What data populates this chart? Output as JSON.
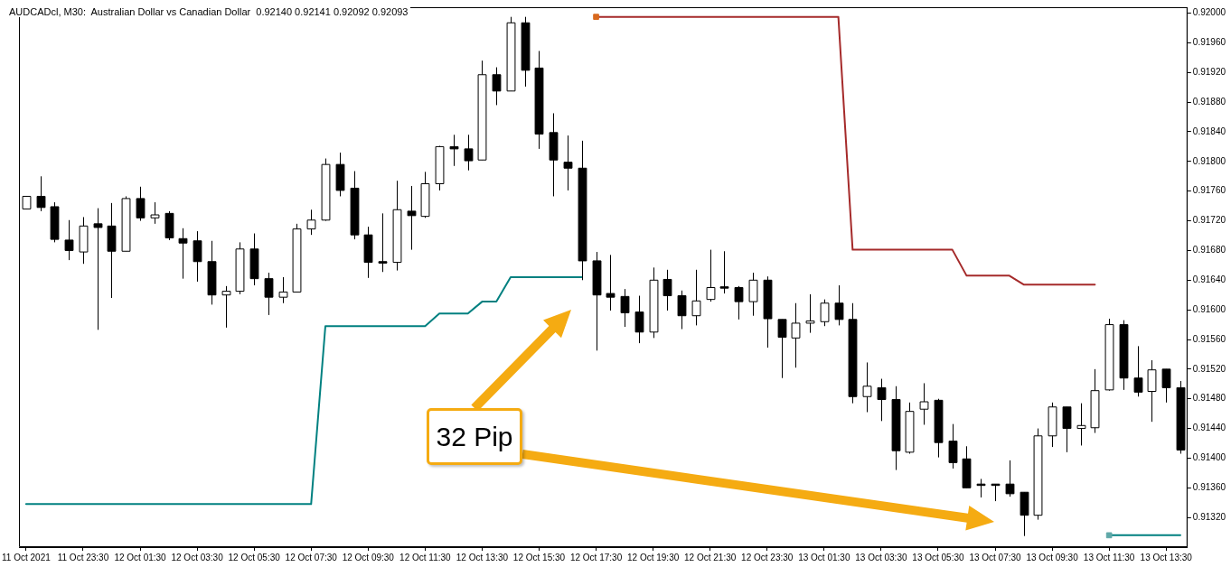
{
  "chart_data": {
    "type": "candlestick",
    "title": "AUDCADcl, M30:  Australian Dollar vs Canadian Dollar  0.92140 0.92141 0.92092 0.92093",
    "categories": [
      "11 Oct 2021",
      null,
      null,
      null,
      "11 Oct 23:30",
      null,
      null,
      null,
      "12 Oct 01:30",
      null,
      null,
      null,
      "12 Oct 03:30",
      null,
      null,
      null,
      "12 Oct 05:30",
      null,
      null,
      null,
      "12 Oct 07:30",
      null,
      null,
      null,
      "12 Oct 09:30",
      null,
      null,
      null,
      "12 Oct 11:30",
      null,
      null,
      null,
      "12 Oct 13:30",
      null,
      null,
      null,
      "12 Oct 15:30",
      null,
      null,
      null,
      "12 Oct 17:30",
      null,
      null,
      null,
      "12 Oct 19:30",
      null,
      null,
      null,
      "12 Oct 21:30",
      null,
      null,
      null,
      "12 Oct 23:30",
      null,
      null,
      null,
      "13 Oct 01:30",
      null,
      null,
      null,
      "13 Oct 03:30",
      null,
      null,
      null,
      "13 Oct 05:30",
      null,
      null,
      null,
      "13 Oct 07:30",
      null,
      null,
      null,
      "13 Oct 09:30",
      null,
      null,
      null,
      "13 Oct 11:30",
      null,
      null,
      null,
      "13 Oct 13:30",
      null
    ],
    "series": [
      {
        "colors": [
          "#ffffff",
          "#000000",
          "#000000",
          "#000000",
          "#ffffff",
          "#000000",
          "#000000",
          "#ffffff",
          "#000000",
          "#ffffff",
          "#000000",
          "#000000",
          "#000000",
          "#000000",
          "#ffffff",
          "#ffffff",
          "#000000",
          "#000000",
          "#ffffff",
          "#ffffff",
          "#ffffff",
          "#ffffff",
          "#000000",
          "#000000",
          "#000000",
          "#000000",
          "#ffffff",
          "#000000",
          "#ffffff",
          "#ffffff",
          "#000000",
          "#000000",
          "#ffffff",
          "#000000",
          "#ffffff",
          "#000000",
          "#000000",
          "#000000",
          "#000000",
          "#000000",
          "#000000",
          "#000000",
          "#000000",
          "#000000",
          "#ffffff",
          "#000000",
          "#000000",
          "#ffffff",
          "#ffffff",
          "#000000",
          "#000000",
          "#ffffff",
          "#000000",
          "#000000",
          "#ffffff",
          "#ffffff",
          "#ffffff",
          "#000000",
          "#000000",
          "#ffffff",
          "#000000",
          "#000000",
          "#ffffff",
          "#ffffff",
          "#000000",
          "#000000",
          "#000000",
          "#000000",
          "#000000",
          "#000000",
          "#000000",
          "#ffffff",
          "#ffffff",
          "#000000",
          "#ffffff",
          "#ffffff",
          "#ffffff",
          "#000000",
          "#000000",
          "#ffffff",
          "#000000",
          "#000000"
        ],
        "ohlc": [
          [
            0.91736,
            0.91753,
            0.91736,
            0.91753
          ],
          [
            0.91753,
            0.9178,
            0.91733,
            0.91738
          ],
          [
            0.91739,
            0.91745,
            0.91691,
            0.91695
          ],
          [
            0.91694,
            0.91721,
            0.91667,
            0.9168
          ],
          [
            0.91678,
            0.91725,
            0.91662,
            0.91713
          ],
          [
            0.91716,
            0.91737,
            0.91573,
            0.91711
          ],
          [
            0.91713,
            0.91744,
            0.91616,
            0.91679
          ],
          [
            0.91679,
            0.91753,
            0.91679,
            0.9175
          ],
          [
            0.9175,
            0.91766,
            0.9172,
            0.91724
          ],
          [
            0.91724,
            0.91745,
            0.91716,
            0.91728
          ],
          [
            0.9173,
            0.91733,
            0.91694,
            0.91697
          ],
          [
            0.91696,
            0.9171,
            0.91642,
            0.9169
          ],
          [
            0.91693,
            0.91706,
            0.91638,
            0.91665
          ],
          [
            0.91665,
            0.91693,
            0.91607,
            0.9162
          ],
          [
            0.9162,
            0.91632,
            0.91576,
            0.91625
          ],
          [
            0.91625,
            0.91691,
            0.91621,
            0.91682
          ],
          [
            0.91682,
            0.91703,
            0.91633,
            0.91642
          ],
          [
            0.91642,
            0.9165,
            0.91593,
            0.91617
          ],
          [
            0.91617,
            0.91644,
            0.91609,
            0.91624
          ],
          [
            0.91624,
            0.91716,
            0.91624,
            0.91709
          ],
          [
            0.91709,
            0.91735,
            0.91701,
            0.91721
          ],
          [
            0.91721,
            0.91804,
            0.9172,
            0.91796
          ],
          [
            0.91796,
            0.91812,
            0.91753,
            0.91761
          ],
          [
            0.91764,
            0.91787,
            0.91695,
            0.91701
          ],
          [
            0.91701,
            0.91712,
            0.91643,
            0.91664
          ],
          [
            0.91665,
            0.9173,
            0.91651,
            0.91663
          ],
          [
            0.91664,
            0.91774,
            0.91653,
            0.91735
          ],
          [
            0.91733,
            0.91767,
            0.91681,
            0.91727
          ],
          [
            0.91726,
            0.91786,
            0.91724,
            0.9177
          ],
          [
            0.9177,
            0.91821,
            0.91761,
            0.9182
          ],
          [
            0.9182,
            0.91836,
            0.91794,
            0.91817
          ],
          [
            0.91817,
            0.91836,
            0.91788,
            0.91801
          ],
          [
            0.91802,
            0.91936,
            0.91802,
            0.91917
          ],
          [
            0.91917,
            0.91927,
            0.91876,
            0.91895
          ],
          [
            0.91895,
            0.91995,
            0.91895,
            0.91987
          ],
          [
            0.91987,
            0.91995,
            0.91901,
            0.91923
          ],
          [
            0.91926,
            0.91949,
            0.91817,
            0.91837
          ],
          [
            0.91839,
            0.91865,
            0.91753,
            0.91802
          ],
          [
            0.91799,
            0.91835,
            0.91761,
            0.91791
          ],
          [
            0.91791,
            0.91828,
            0.9164,
            0.91666
          ],
          [
            0.91666,
            0.91678,
            0.91545,
            0.9162
          ],
          [
            0.91622,
            0.91674,
            0.91599,
            0.91617
          ],
          [
            0.91618,
            0.91628,
            0.91577,
            0.91596
          ],
          [
            0.91597,
            0.91619,
            0.91555,
            0.9157
          ],
          [
            0.9157,
            0.91657,
            0.91562,
            0.9164
          ],
          [
            0.91641,
            0.91654,
            0.91599,
            0.91619
          ],
          [
            0.91619,
            0.91626,
            0.91574,
            0.91592
          ],
          [
            0.91592,
            0.91654,
            0.91579,
            0.91612
          ],
          [
            0.91614,
            0.91681,
            0.91611,
            0.9163
          ],
          [
            0.91631,
            0.91679,
            0.91622,
            0.9163
          ],
          [
            0.9163,
            0.91632,
            0.91587,
            0.91611
          ],
          [
            0.91611,
            0.9165,
            0.91592,
            0.9164
          ],
          [
            0.9164,
            0.91645,
            0.91549,
            0.91588
          ],
          [
            0.91587,
            0.91587,
            0.91508,
            0.91563
          ],
          [
            0.91562,
            0.91609,
            0.91522,
            0.91582
          ],
          [
            0.91582,
            0.91621,
            0.91569,
            0.91585
          ],
          [
            0.91584,
            0.91614,
            0.91578,
            0.91609
          ],
          [
            0.91609,
            0.91633,
            0.91579,
            0.91587
          ],
          [
            0.91587,
            0.91609,
            0.91474,
            0.91483
          ],
          [
            0.91483,
            0.91529,
            0.91462,
            0.91497
          ],
          [
            0.91495,
            0.91507,
            0.9145,
            0.91479
          ],
          [
            0.91479,
            0.91497,
            0.91384,
            0.9141
          ],
          [
            0.91408,
            0.91475,
            0.91406,
            0.91463
          ],
          [
            0.91466,
            0.91501,
            0.91445,
            0.91476
          ],
          [
            0.91478,
            0.9148,
            0.91401,
            0.91421
          ],
          [
            0.91423,
            0.91446,
            0.91386,
            0.91394
          ],
          [
            0.91399,
            0.91416,
            0.9136,
            0.9136
          ],
          [
            0.91365,
            0.91372,
            0.91347,
            0.91364
          ],
          [
            0.91365,
            0.91365,
            0.91342,
            0.91364
          ],
          [
            0.91365,
            0.91397,
            0.91348,
            0.91352
          ],
          [
            0.91354,
            0.91354,
            0.91295,
            0.91323
          ],
          [
            0.91323,
            0.9144,
            0.91317,
            0.9143
          ],
          [
            0.9143,
            0.91475,
            0.91415,
            0.91469
          ],
          [
            0.91469,
            0.91469,
            0.91408,
            0.9144
          ],
          [
            0.9144,
            0.91474,
            0.91417,
            0.91444
          ],
          [
            0.91441,
            0.9152,
            0.91434,
            0.91491
          ],
          [
            0.91492,
            0.91588,
            0.91491,
            0.9158
          ],
          [
            0.9158,
            0.91586,
            0.91492,
            0.91508
          ],
          [
            0.91508,
            0.91551,
            0.91483,
            0.91489
          ],
          [
            0.9149,
            0.91532,
            0.91449,
            0.91519
          ],
          [
            0.9152,
            0.9152,
            0.91475,
            0.91495
          ],
          [
            0.91495,
            0.91504,
            0.91406,
            0.91411
          ]
        ]
      },
      {
        "type": "scatter",
        "color": "#d8691e",
        "marker": "square",
        "values": [
          null,
          null,
          null,
          null,
          null,
          null,
          null,
          null,
          null,
          null,
          null,
          null,
          null,
          null,
          null,
          null,
          null,
          null,
          null,
          null,
          null,
          null,
          null,
          null,
          null,
          null,
          null,
          null,
          null,
          null,
          null,
          null,
          null,
          null,
          null,
          null,
          null,
          null,
          null,
          null,
          0.91995,
          null,
          null,
          null,
          null,
          null,
          null,
          null,
          null,
          null,
          null,
          null,
          null,
          null,
          null,
          null,
          null,
          null,
          null,
          null,
          null,
          null,
          null,
          null,
          null,
          null,
          null,
          null,
          null,
          null,
          null,
          null,
          null,
          null,
          null,
          null,
          null,
          null,
          null,
          null,
          null,
          null
        ]
      },
      {
        "type": "scatter",
        "color": "#5fa8a8",
        "marker": "square",
        "values": [
          null,
          null,
          null,
          null,
          null,
          null,
          null,
          null,
          null,
          null,
          null,
          null,
          null,
          null,
          null,
          null,
          null,
          null,
          null,
          null,
          null,
          null,
          null,
          null,
          null,
          null,
          null,
          null,
          null,
          null,
          null,
          null,
          null,
          null,
          null,
          null,
          null,
          null,
          null,
          null,
          null,
          null,
          null,
          null,
          null,
          null,
          null,
          null,
          null,
          null,
          null,
          null,
          null,
          null,
          null,
          null,
          null,
          null,
          null,
          null,
          null,
          null,
          null,
          null,
          null,
          null,
          null,
          null,
          null,
          null,
          null,
          null,
          null,
          null,
          null,
          null,
          0.91296,
          null,
          null,
          null,
          null,
          null
        ]
      },
      {
        "type": "line",
        "color": "#a52a2a",
        "values": [
          null,
          null,
          null,
          null,
          null,
          null,
          null,
          null,
          null,
          null,
          null,
          null,
          null,
          null,
          null,
          null,
          null,
          null,
          null,
          null,
          null,
          null,
          null,
          null,
          null,
          null,
          null,
          null,
          null,
          null,
          null,
          null,
          null,
          null,
          null,
          null,
          null,
          null,
          null,
          null,
          0.91995,
          0.91995,
          0.91995,
          0.91995,
          0.91995,
          0.91995,
          0.91995,
          0.91995,
          0.91995,
          0.91995,
          0.91995,
          0.91995,
          0.91995,
          0.91995,
          0.91995,
          0.91995,
          0.91995,
          0.91995,
          0.91681,
          0.91681,
          0.91681,
          0.91681,
          0.91681,
          0.91681,
          0.91681,
          0.91681,
          0.91646,
          0.91646,
          0.91646,
          0.91646,
          0.91634,
          0.91634,
          0.91634,
          0.91634,
          0.91634,
          0.91634,
          null,
          null,
          null,
          null,
          null,
          null
        ]
      },
      {
        "type": "line",
        "color": "#008080",
        "values": [
          0.91338,
          0.91338,
          0.91338,
          0.91338,
          0.91338,
          0.91338,
          0.91338,
          0.91338,
          0.91338,
          0.91338,
          0.91338,
          0.91338,
          0.91338,
          0.91338,
          0.91338,
          0.91338,
          0.91338,
          0.91338,
          0.91338,
          0.91338,
          0.91338,
          0.91578,
          0.91578,
          0.91578,
          0.91578,
          0.91578,
          0.91578,
          0.91578,
          0.91578,
          0.91595,
          0.91595,
          0.91595,
          0.91611,
          0.91611,
          0.91644,
          0.91644,
          0.91644,
          0.91644,
          0.91644,
          0.91644,
          null,
          null,
          null,
          null,
          null,
          null,
          null,
          null,
          null,
          null,
          null,
          null,
          null,
          null,
          null,
          null,
          null,
          null,
          null,
          null,
          null,
          null,
          null,
          null,
          null,
          null,
          null,
          null,
          null,
          null,
          null,
          null,
          null,
          null,
          null,
          null,
          0.91296,
          0.91296,
          0.91296,
          0.91296,
          0.91296,
          0.91296
        ]
      }
    ],
    "ylim": [
      0.9128,
      0.92008
    ],
    "yticks": [
      {
        "value": 0.9132,
        "label": "0.91320"
      },
      {
        "value": 0.9136,
        "label": "0.91360"
      },
      {
        "value": 0.914,
        "label": "0.91400"
      },
      {
        "value": 0.9144,
        "label": "0.91440"
      },
      {
        "value": 0.9148,
        "label": "0.91480"
      },
      {
        "value": 0.9152,
        "label": "0.91520"
      },
      {
        "value": 0.9156,
        "label": "0.91560"
      },
      {
        "value": 0.916,
        "label": "0.91600"
      },
      {
        "value": 0.9164,
        "label": "0.91640"
      },
      {
        "value": 0.9168,
        "label": "0.91680"
      },
      {
        "value": 0.9172,
        "label": "0.91720"
      },
      {
        "value": 0.9176,
        "label": "0.91760"
      },
      {
        "value": 0.918,
        "label": "0.91800"
      },
      {
        "value": 0.9184,
        "label": "0.91840"
      },
      {
        "value": 0.9188,
        "label": "0.91880"
      },
      {
        "value": 0.9192,
        "label": "0.91920"
      },
      {
        "value": 0.9196,
        "label": "0.91960"
      },
      {
        "value": 0.92,
        "label": "0.92000"
      }
    ],
    "grid": false,
    "legend": false,
    "annotations": [
      "32 Pip"
    ]
  }
}
